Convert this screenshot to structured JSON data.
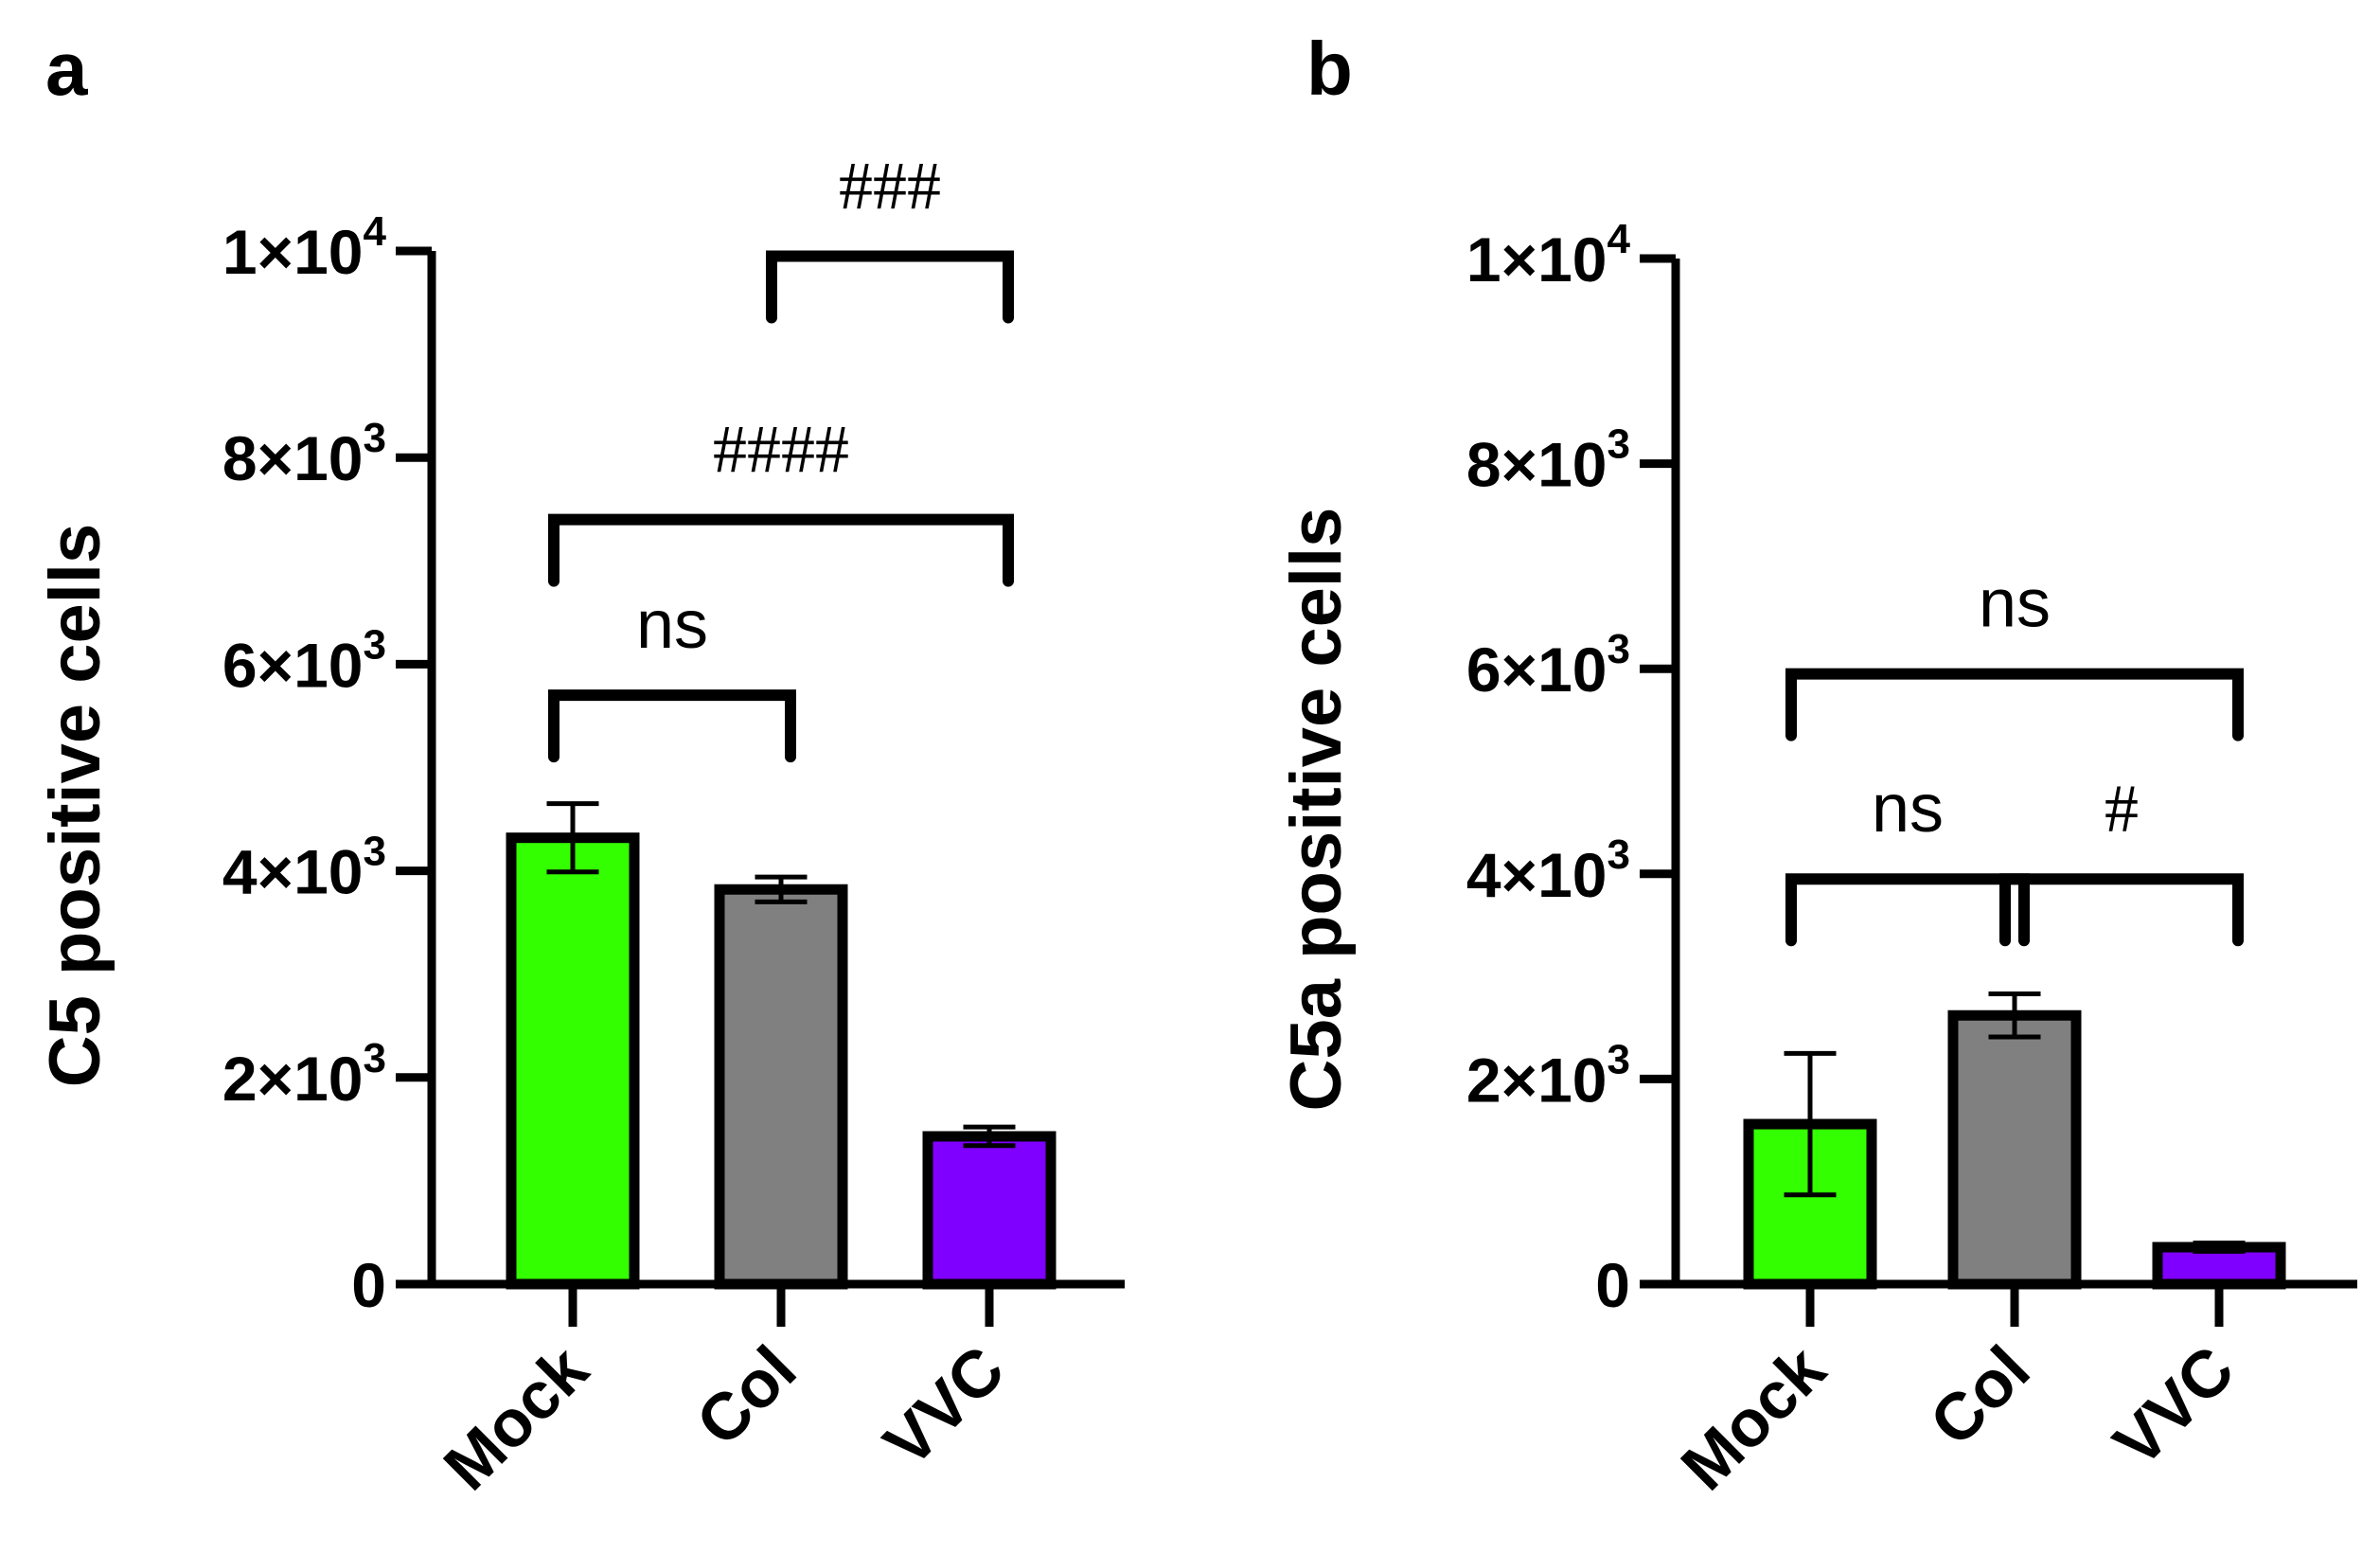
{
  "chart_data": [
    {
      "panel": "a",
      "type": "bar",
      "ylabel": "C5 positive cells",
      "xlabel": "",
      "categories": [
        "Mock",
        "Col",
        "VVC"
      ],
      "values": [
        4320,
        3820,
        1430
      ],
      "errors": [
        330,
        120,
        90
      ],
      "colors": [
        "#33ff00",
        "#808080",
        "#7f00ff"
      ],
      "ylim": [
        0,
        10000
      ],
      "yticks": [
        {
          "value": 0,
          "base": "0",
          "exp": ""
        },
        {
          "value": 2000,
          "base": "2×10",
          "exp": "3"
        },
        {
          "value": 4000,
          "base": "4×10",
          "exp": "3"
        },
        {
          "value": 6000,
          "base": "6×10",
          "exp": "3"
        },
        {
          "value": 8000,
          "base": "8×10",
          "exp": "3"
        },
        {
          "value": 10000,
          "base": "1×10",
          "exp": "4"
        }
      ],
      "comparisons": [
        {
          "from": 0,
          "to": 1,
          "label": "ns",
          "level": 5700,
          "style": "ns"
        },
        {
          "from": 0,
          "to": 2,
          "label": "####",
          "level": 7400,
          "style": "hash"
        },
        {
          "from": 1,
          "to": 2,
          "label": "###",
          "level": 9950,
          "style": "hash"
        }
      ]
    },
    {
      "panel": "b",
      "type": "bar",
      "ylabel": "C5a positive cells",
      "xlabel": "",
      "categories": [
        "Mock",
        "Col",
        "VVC"
      ],
      "values": [
        1560,
        2620,
        360
      ],
      "errors": [
        690,
        210,
        40
      ],
      "colors": [
        "#33ff00",
        "#808080",
        "#7f00ff"
      ],
      "ylim": [
        0,
        10000
      ],
      "yticks": [
        {
          "value": 0,
          "base": "0",
          "exp": ""
        },
        {
          "value": 2000,
          "base": "2×10",
          "exp": "3"
        },
        {
          "value": 4000,
          "base": "4×10",
          "exp": "3"
        },
        {
          "value": 6000,
          "base": "6×10",
          "exp": "3"
        },
        {
          "value": 8000,
          "base": "8×10",
          "exp": "3"
        },
        {
          "value": 10000,
          "base": "1×10",
          "exp": "4"
        }
      ],
      "comparisons": [
        {
          "from": 0,
          "to": 1,
          "label": "ns",
          "level": 3950,
          "style": "ns"
        },
        {
          "from": 1,
          "to": 2,
          "label": "#",
          "level": 3950,
          "style": "hash"
        },
        {
          "from": 0,
          "to": 2,
          "label": "ns",
          "level": 5950,
          "style": "ns"
        }
      ]
    }
  ]
}
